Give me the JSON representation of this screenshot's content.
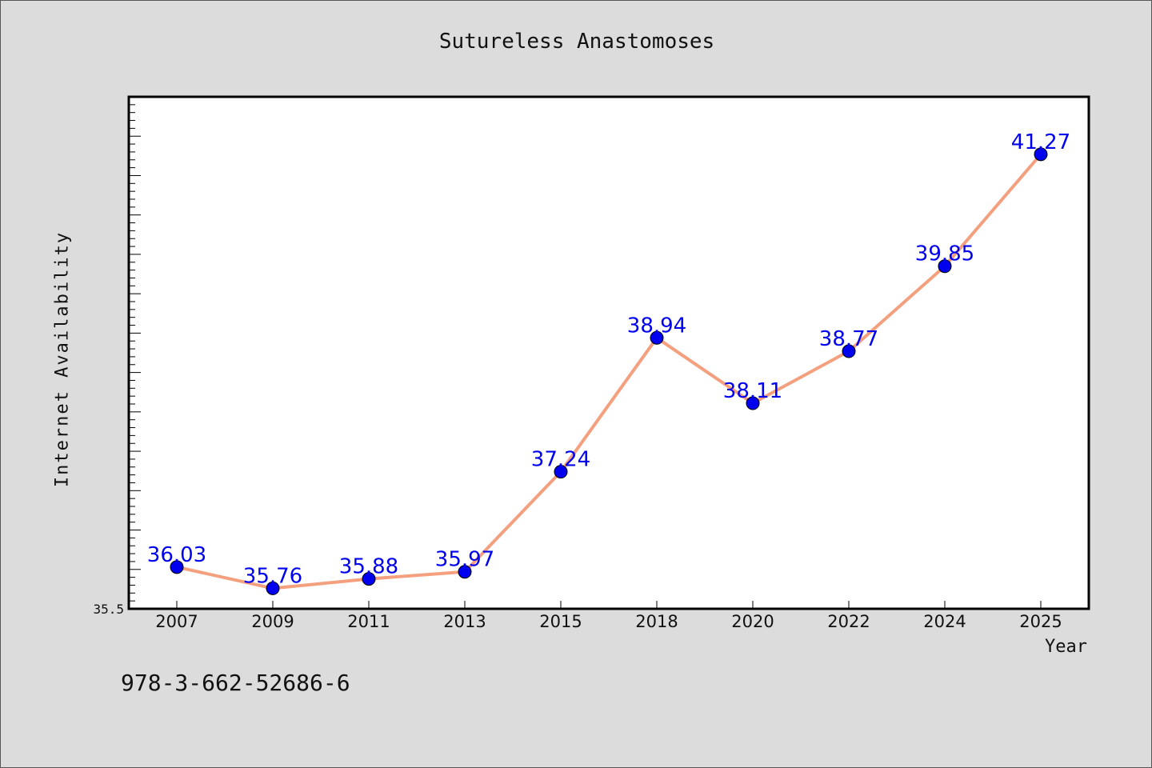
{
  "chart_data": {
    "type": "line",
    "title": "Sutureless Anastomoses",
    "xlabel": "Year",
    "ylabel": "Internet Availability",
    "categories": [
      "2007",
      "2009",
      "2011",
      "2013",
      "2015",
      "2018",
      "2020",
      "2022",
      "2024",
      "2025"
    ],
    "series": [
      {
        "values": [
          36.03,
          35.76,
          35.88,
          35.97,
          37.24,
          38.94,
          38.11,
          38.77,
          39.85,
          41.27
        ]
      }
    ],
    "data_labels": [
      "36.03",
      "35.76",
      "35.88",
      "35.97",
      "37.24",
      "38.94",
      "38.11",
      "38.77",
      "39.85",
      "41.27"
    ],
    "ylim": [
      35.5,
      42.0
    ],
    "y_tick_labels": [
      "35.5"
    ],
    "grid": false,
    "legend": "none",
    "colors": {
      "line": "#f4a07f",
      "marker": "#0000ee",
      "label": "#0000ee",
      "plot_background": "#ffffff",
      "page_background": "#dcdcdc"
    }
  },
  "footer_text": "978-3-662-52686-6"
}
